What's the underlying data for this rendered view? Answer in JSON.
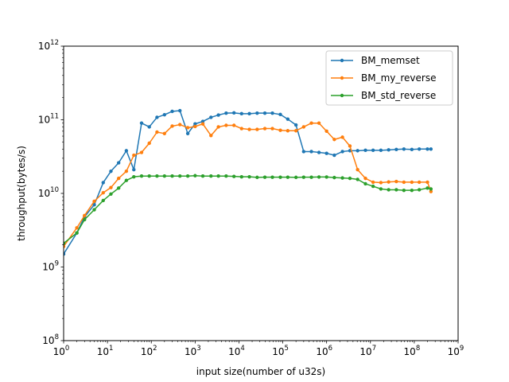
{
  "chart_data": {
    "type": "line",
    "xscale": "log",
    "yscale": "log",
    "xlim": [
      1,
      1000000000
    ],
    "ylim": [
      100000000,
      1000000000000
    ],
    "xlabel": "input size(number of u32s)",
    "ylabel": "throughput(bytes/s)",
    "x_ticks": [
      {
        "value": 1,
        "base": "10",
        "exp": "0"
      },
      {
        "value": 10,
        "base": "10",
        "exp": "1"
      },
      {
        "value": 100,
        "base": "10",
        "exp": "2"
      },
      {
        "value": 1000,
        "base": "10",
        "exp": "3"
      },
      {
        "value": 10000,
        "base": "10",
        "exp": "4"
      },
      {
        "value": 100000,
        "base": "10",
        "exp": "5"
      },
      {
        "value": 1000000,
        "base": "10",
        "exp": "6"
      },
      {
        "value": 10000000,
        "base": "10",
        "exp": "7"
      },
      {
        "value": 100000000,
        "base": "10",
        "exp": "8"
      },
      {
        "value": 1000000000,
        "base": "10",
        "exp": "9"
      }
    ],
    "y_ticks": [
      {
        "value": 100000000,
        "base": "10",
        "exp": "8"
      },
      {
        "value": 1000000000,
        "base": "10",
        "exp": "9"
      },
      {
        "value": 10000000000,
        "base": "10",
        "exp": "10"
      },
      {
        "value": 100000000000,
        "base": "10",
        "exp": "11"
      },
      {
        "value": 1000000000000,
        "base": "10",
        "exp": "12"
      }
    ],
    "grid": false,
    "legend_position": "top-right",
    "x": [
      1,
      2,
      3,
      5,
      8,
      12,
      18,
      27,
      40,
      60,
      90,
      135,
      200,
      300,
      450,
      680,
      1000,
      1500,
      2300,
      3400,
      5100,
      7700,
      11500,
      17300,
      26000,
      39000,
      58000,
      88000,
      130000,
      200000,
      300000,
      450000,
      670000,
      1000000,
      1500000,
      2300000,
      3400000,
      5100000,
      7700000,
      11500000,
      17300000,
      26000000,
      39000000,
      58000000,
      88000000,
      130000000,
      200000000,
      240000000
    ],
    "series": [
      {
        "name": "BM_memset",
        "color": "#1f77b4",
        "values": [
          1500000000.0,
          2900000000.0,
          4800000000.0,
          7000000000.0,
          14000000000.0,
          20000000000.0,
          26000000000.0,
          38000000000.0,
          21000000000.0,
          90000000000.0,
          80000000000.0,
          108000000000.0,
          117000000000.0,
          130000000000.0,
          133000000000.0,
          65000000000.0,
          88000000000.0,
          95000000000.0,
          108000000000.0,
          116000000000.0,
          123000000000.0,
          124000000000.0,
          121000000000.0,
          121000000000.0,
          123000000000.0,
          123000000000.0,
          123000000000.0,
          118000000000.0,
          102000000000.0,
          85000000000.0,
          37000000000.0,
          37000000000.0,
          36000000000.0,
          35000000000.0,
          33000000000.0,
          37000000000.0,
          38000000000.0,
          38000000000.0,
          38500000000.0,
          38500000000.0,
          38500000000.0,
          39000000000.0,
          39500000000.0,
          40000000000.0,
          39500000000.0,
          40000000000.0,
          40000000000.0,
          40000000000.0
        ]
      },
      {
        "name": "BM_my_reverse",
        "color": "#ff7f0e",
        "values": [
          1900000000.0,
          3400000000.0,
          5000000000.0,
          7800000000.0,
          10200000000.0,
          12000000000.0,
          16000000000.0,
          20000000000.0,
          33000000000.0,
          36000000000.0,
          48000000000.0,
          68000000000.0,
          65000000000.0,
          82000000000.0,
          86000000000.0,
          78000000000.0,
          81000000000.0,
          88000000000.0,
          61000000000.0,
          80000000000.0,
          84000000000.0,
          84000000000.0,
          76000000000.0,
          74000000000.0,
          74000000000.0,
          76000000000.0,
          76000000000.0,
          72000000000.0,
          71000000000.0,
          71000000000.0,
          80000000000.0,
          90000000000.0,
          90000000000.0,
          70000000000.0,
          54000000000.0,
          58000000000.0,
          44000000000.0,
          21000000000.0,
          16000000000.0,
          14200000000.0,
          14000000000.0,
          14300000000.0,
          14500000000.0,
          14200000000.0,
          14200000000.0,
          14200000000.0,
          14200000000.0,
          10600000000.0
        ]
      },
      {
        "name": "BM_std_reverse",
        "color": "#2ca02c",
        "values": [
          2100000000.0,
          2900000000.0,
          4400000000.0,
          6000000000.0,
          8000000000.0,
          9800000000.0,
          11800000000.0,
          15000000000.0,
          16800000000.0,
          17200000000.0,
          17200000000.0,
          17200000000.0,
          17200000000.0,
          17200000000.0,
          17200000000.0,
          17200000000.0,
          17400000000.0,
          17200000000.0,
          17200000000.0,
          17200000000.0,
          17200000000.0,
          17000000000.0,
          16800000000.0,
          16800000000.0,
          16500000000.0,
          16600000000.0,
          16600000000.0,
          16600000000.0,
          16600000000.0,
          16500000000.0,
          16600000000.0,
          16600000000.0,
          16700000000.0,
          16700000000.0,
          16400000000.0,
          16200000000.0,
          16000000000.0,
          15500000000.0,
          13500000000.0,
          12500000000.0,
          11500000000.0,
          11200000000.0,
          11200000000.0,
          11000000000.0,
          11000000000.0,
          11200000000.0,
          11800000000.0,
          11500000000.0
        ]
      }
    ]
  }
}
